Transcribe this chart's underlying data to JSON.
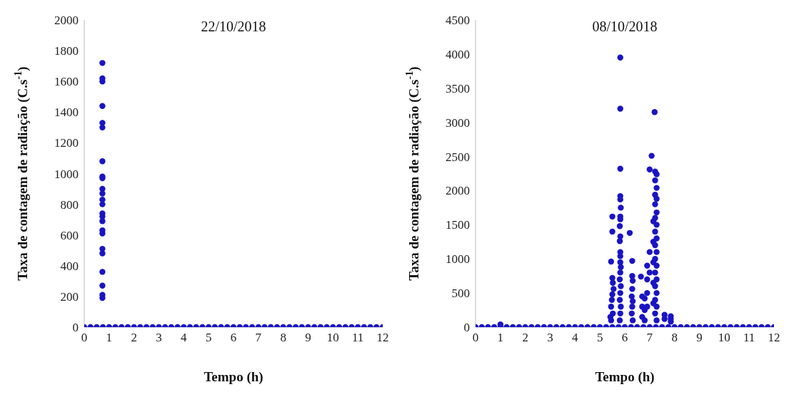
{
  "chart_data": [
    {
      "type": "scatter",
      "title": "22/10/2018",
      "xlabel": "Tempo  (h)",
      "ylabel": "Taxa de contagem de radiação  (C.s$^{-1}$)",
      "xlim": [
        0,
        12
      ],
      "xticks": [
        0,
        1,
        2,
        3,
        4,
        5,
        6,
        7,
        8,
        9,
        10,
        11,
        12
      ],
      "ylim": [
        0,
        2000
      ],
      "yticks": [
        0,
        200,
        400,
        600,
        800,
        1000,
        1200,
        1400,
        1600,
        1800,
        2000
      ],
      "marker": "circle",
      "grid": false,
      "legend": false,
      "series": [
        {
          "color": "#1a14c4",
          "x": [
            0.73,
            0.73,
            0.73,
            0.73,
            0.73,
            0.73,
            0.73,
            0.73,
            0.73,
            0.73,
            0.73,
            0.73,
            0.73,
            0.73,
            0.73,
            0.73,
            0.73,
            0.73,
            0.73,
            0.73,
            0.73,
            0.73,
            0.73,
            0.73,
            0,
            0.25,
            0.5,
            0.75,
            1,
            1.25,
            1.5,
            1.75,
            2,
            2.25,
            2.5,
            2.75,
            3,
            3.25,
            3.5,
            3.75,
            4,
            4.25,
            4.5,
            4.75,
            5,
            5.25,
            5.5,
            5.75,
            6,
            6.25,
            6.5,
            6.75,
            7,
            7.25,
            7.5,
            7.75,
            8,
            8.25,
            8.5,
            8.75,
            9,
            9.25,
            9.5,
            9.75,
            10,
            10.25,
            10.5,
            10.75,
            11,
            11.25,
            11.5,
            11.75,
            12
          ],
          "values": [
            1720,
            1620,
            1600,
            1440,
            1330,
            1300,
            1080,
            980,
            970,
            900,
            870,
            830,
            800,
            740,
            720,
            690,
            630,
            610,
            510,
            480,
            360,
            270,
            210,
            190,
            0,
            0,
            0,
            0,
            0,
            0,
            0,
            0,
            0,
            0,
            0,
            0,
            0,
            0,
            0,
            0,
            0,
            0,
            0,
            0,
            0,
            0,
            0,
            0,
            0,
            0,
            0,
            0,
            0,
            0,
            0,
            0,
            0,
            0,
            0,
            0,
            0,
            0,
            0,
            0,
            0,
            0,
            0,
            0,
            0,
            0,
            0,
            0,
            0
          ]
        }
      ]
    },
    {
      "type": "scatter",
      "title": "08/10/2018",
      "xlabel": "Tempo  (h)",
      "ylabel": "Taxa de contagem de radiação  (C.s$^{-1}$)",
      "xlim": [
        0,
        12
      ],
      "xticks": [
        0,
        1,
        2,
        3,
        4,
        5,
        6,
        7,
        8,
        9,
        10,
        11,
        12
      ],
      "ylim": [
        0,
        4500
      ],
      "yticks": [
        0,
        500,
        1000,
        1500,
        2000,
        2500,
        3000,
        3500,
        4000,
        4500
      ],
      "marker": "circle",
      "grid": false,
      "legend": false,
      "series": [
        {
          "color": "#1a14c4",
          "x": [
            1,
            5.5,
            5.5,
            5.45,
            5.5,
            5.52,
            5.55,
            5.5,
            5.48,
            5.45,
            5.52,
            5.42,
            5.45,
            5.82,
            5.82,
            5.82,
            5.82,
            5.82,
            5.84,
            5.82,
            5.82,
            5.8,
            5.82,
            5.8,
            5.82,
            5.82,
            5.82,
            5.84,
            5.82,
            5.8,
            5.84,
            5.82,
            5.8,
            5.84,
            5.82,
            5.8,
            6.2,
            6.3,
            6.3,
            6.32,
            6.3,
            6.28,
            6.32,
            6.3,
            6.28,
            6.32,
            6.65,
            6.7,
            6.7,
            6.7,
            6.8,
            6.8,
            6.8,
            6.9,
            6.9,
            6.9,
            6.9,
            7.0,
            7.0,
            7.0,
            7.08,
            7.2,
            7.22,
            7.22,
            7.22,
            7.22,
            7.22,
            7.22,
            7.22,
            7.22,
            7.22,
            7.22,
            7.22,
            7.22,
            7.28,
            7.28,
            7.28,
            7.28,
            7.28,
            7.28,
            7.28,
            7.28,
            7.28,
            7.28,
            7.28,
            7.28,
            7.15,
            7.15,
            7.15,
            7.15,
            7.15,
            7.6,
            7.6,
            7.85,
            7.85,
            7.85,
            0,
            0.25,
            0.5,
            0.75,
            1,
            1.25,
            1.5,
            1.75,
            2,
            2.25,
            2.5,
            2.75,
            3,
            3.25,
            3.5,
            3.75,
            4,
            4.25,
            4.5,
            4.75,
            5,
            5.25,
            5.5,
            5.75,
            6,
            6.25,
            6.5,
            6.75,
            7,
            7.25,
            7.5,
            7.75,
            8,
            8.25,
            8.5,
            8.75,
            9,
            9.25,
            9.5,
            9.75,
            10,
            10.25,
            10.5,
            10.75,
            11,
            11.25,
            11.5,
            11.75,
            12
          ],
          "values": [
            40,
            1620,
            1400,
            960,
            720,
            650,
            560,
            480,
            400,
            300,
            200,
            150,
            100,
            3950,
            3200,
            2320,
            1920,
            1870,
            1750,
            1620,
            1580,
            1480,
            1330,
            1260,
            1100,
            1040,
            950,
            880,
            800,
            700,
            600,
            500,
            400,
            300,
            200,
            100,
            1380,
            970,
            750,
            680,
            560,
            450,
            380,
            300,
            200,
            100,
            740,
            450,
            300,
            150,
            420,
            250,
            100,
            900,
            700,
            500,
            300,
            2310,
            1100,
            800,
            2510,
            3150,
            2280,
            2150,
            1940,
            1800,
            1600,
            1400,
            1200,
            1000,
            800,
            600,
            400,
            200,
            2240,
            2040,
            1880,
            1680,
            1500,
            1300,
            1100,
            900,
            700,
            500,
            300,
            100,
            1550,
            1250,
            950,
            650,
            350,
            180,
            120,
            160,
            120,
            80,
            0,
            0,
            0,
            0,
            0,
            0,
            0,
            0,
            0,
            0,
            0,
            0,
            0,
            0,
            0,
            0,
            0,
            0,
            0,
            0,
            0,
            0,
            0,
            0,
            0,
            0,
            0,
            0,
            0,
            0,
            0,
            0,
            0,
            0,
            0,
            0,
            0,
            0,
            0,
            0,
            0,
            0,
            0,
            0,
            0,
            0,
            0,
            0,
            0
          ]
        }
      ]
    }
  ]
}
